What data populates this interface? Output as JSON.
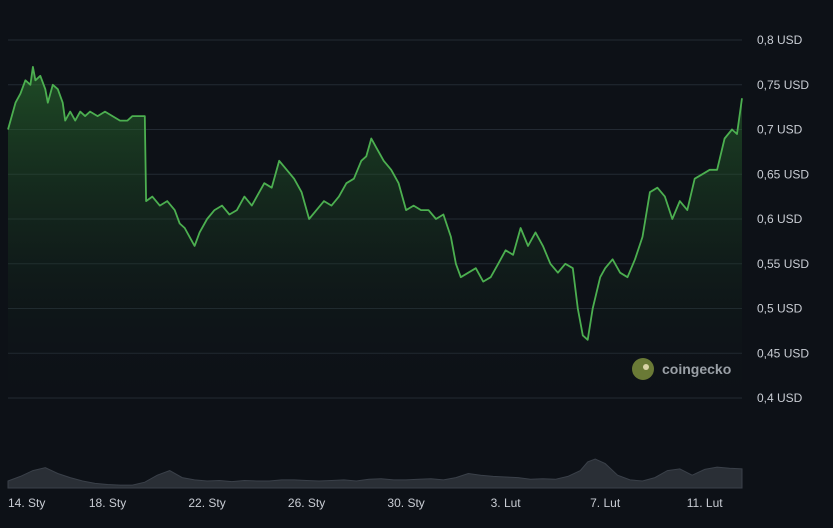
{
  "chart_data": {
    "type": "area",
    "y_ticks": [
      "0,8 USD",
      "0,75 USD",
      "0,7 USD",
      "0,65 USD",
      "0,6 USD",
      "0,55 USD",
      "0,5 USD",
      "0,45 USD",
      "0,4 USD"
    ],
    "y_tick_values": [
      0.8,
      0.75,
      0.7,
      0.65,
      0.6,
      0.55,
      0.5,
      0.45,
      0.4
    ],
    "x_ticks": [
      "14. Sty",
      "18. Sty",
      "22. Sty",
      "26. Sty",
      "30. Sty",
      "3. Lut",
      "7. Lut",
      "11. Lut"
    ],
    "x_tick_days": [
      0,
      4,
      8,
      12,
      16,
      20,
      24,
      28
    ],
    "ylim": [
      0.4,
      0.8
    ],
    "xlim_days": [
      0,
      29.5
    ],
    "grid": true,
    "line_color": "#4caf50",
    "series": [
      {
        "values": [
          [
            0,
            0.7
          ],
          [
            0.1,
            0.71
          ],
          [
            0.3,
            0.73
          ],
          [
            0.5,
            0.74
          ],
          [
            0.7,
            0.755
          ],
          [
            0.9,
            0.75
          ],
          [
            1.0,
            0.77
          ],
          [
            1.1,
            0.755
          ],
          [
            1.3,
            0.76
          ],
          [
            1.5,
            0.745
          ],
          [
            1.6,
            0.73
          ],
          [
            1.8,
            0.75
          ],
          [
            2.0,
            0.745
          ],
          [
            2.2,
            0.73
          ],
          [
            2.3,
            0.71
          ],
          [
            2.5,
            0.72
          ],
          [
            2.7,
            0.71
          ],
          [
            2.9,
            0.72
          ],
          [
            3.1,
            0.715
          ],
          [
            3.3,
            0.72
          ],
          [
            3.6,
            0.715
          ],
          [
            3.9,
            0.72
          ],
          [
            4.2,
            0.715
          ],
          [
            4.5,
            0.71
          ],
          [
            4.8,
            0.71
          ],
          [
            5.0,
            0.715
          ],
          [
            5.5,
            0.715
          ],
          [
            5.55,
            0.62
          ],
          [
            5.8,
            0.625
          ],
          [
            6.1,
            0.615
          ],
          [
            6.4,
            0.62
          ],
          [
            6.7,
            0.61
          ],
          [
            6.9,
            0.595
          ],
          [
            7.1,
            0.59
          ],
          [
            7.3,
            0.58
          ],
          [
            7.5,
            0.57
          ],
          [
            7.7,
            0.585
          ],
          [
            8.0,
            0.6
          ],
          [
            8.3,
            0.61
          ],
          [
            8.6,
            0.615
          ],
          [
            8.9,
            0.605
          ],
          [
            9.2,
            0.61
          ],
          [
            9.5,
            0.625
          ],
          [
            9.8,
            0.615
          ],
          [
            10.0,
            0.625
          ],
          [
            10.3,
            0.64
          ],
          [
            10.6,
            0.635
          ],
          [
            10.9,
            0.665
          ],
          [
            11.2,
            0.655
          ],
          [
            11.5,
            0.645
          ],
          [
            11.8,
            0.63
          ],
          [
            12.1,
            0.6
          ],
          [
            12.4,
            0.61
          ],
          [
            12.7,
            0.62
          ],
          [
            13.0,
            0.615
          ],
          [
            13.3,
            0.625
          ],
          [
            13.6,
            0.64
          ],
          [
            13.9,
            0.645
          ],
          [
            14.2,
            0.665
          ],
          [
            14.4,
            0.67
          ],
          [
            14.6,
            0.69
          ],
          [
            14.8,
            0.68
          ],
          [
            15.1,
            0.665
          ],
          [
            15.4,
            0.655
          ],
          [
            15.7,
            0.64
          ],
          [
            16.0,
            0.61
          ],
          [
            16.3,
            0.615
          ],
          [
            16.6,
            0.61
          ],
          [
            16.9,
            0.61
          ],
          [
            17.2,
            0.6
          ],
          [
            17.5,
            0.605
          ],
          [
            17.8,
            0.58
          ],
          [
            18.0,
            0.55
          ],
          [
            18.2,
            0.535
          ],
          [
            18.5,
            0.54
          ],
          [
            18.8,
            0.545
          ],
          [
            19.1,
            0.53
          ],
          [
            19.4,
            0.535
          ],
          [
            19.7,
            0.55
          ],
          [
            20.0,
            0.565
          ],
          [
            20.3,
            0.56
          ],
          [
            20.6,
            0.59
          ],
          [
            20.9,
            0.57
          ],
          [
            21.2,
            0.585
          ],
          [
            21.5,
            0.57
          ],
          [
            21.8,
            0.55
          ],
          [
            22.1,
            0.54
          ],
          [
            22.4,
            0.55
          ],
          [
            22.7,
            0.545
          ],
          [
            22.9,
            0.5
          ],
          [
            23.1,
            0.47
          ],
          [
            23.3,
            0.465
          ],
          [
            23.5,
            0.5
          ],
          [
            23.8,
            0.535
          ],
          [
            24.0,
            0.545
          ],
          [
            24.3,
            0.555
          ],
          [
            24.6,
            0.54
          ],
          [
            24.9,
            0.535
          ],
          [
            25.2,
            0.555
          ],
          [
            25.5,
            0.58
          ],
          [
            25.8,
            0.63
          ],
          [
            26.1,
            0.635
          ],
          [
            26.4,
            0.625
          ],
          [
            26.7,
            0.6
          ],
          [
            27.0,
            0.62
          ],
          [
            27.3,
            0.61
          ],
          [
            27.6,
            0.645
          ],
          [
            27.9,
            0.65
          ],
          [
            28.2,
            0.655
          ],
          [
            28.5,
            0.655
          ],
          [
            28.8,
            0.69
          ],
          [
            29.1,
            0.7
          ],
          [
            29.3,
            0.695
          ],
          [
            29.5,
            0.735
          ]
        ]
      }
    ],
    "volume_values": [
      [
        0,
        0.12
      ],
      [
        0.5,
        0.2
      ],
      [
        1.0,
        0.3
      ],
      [
        1.5,
        0.35
      ],
      [
        2.0,
        0.25
      ],
      [
        2.5,
        0.18
      ],
      [
        3.0,
        0.12
      ],
      [
        3.5,
        0.08
      ],
      [
        4.0,
        0.06
      ],
      [
        4.5,
        0.05
      ],
      [
        5.0,
        0.05
      ],
      [
        5.5,
        0.1
      ],
      [
        6.0,
        0.22
      ],
      [
        6.5,
        0.3
      ],
      [
        7.0,
        0.18
      ],
      [
        7.5,
        0.14
      ],
      [
        8.0,
        0.12
      ],
      [
        8.5,
        0.13
      ],
      [
        9.0,
        0.11
      ],
      [
        9.5,
        0.13
      ],
      [
        10.0,
        0.12
      ],
      [
        10.5,
        0.12
      ],
      [
        11.0,
        0.14
      ],
      [
        11.5,
        0.14
      ],
      [
        12.0,
        0.13
      ],
      [
        12.5,
        0.12
      ],
      [
        13.0,
        0.13
      ],
      [
        13.5,
        0.14
      ],
      [
        14.0,
        0.12
      ],
      [
        14.5,
        0.15
      ],
      [
        15.0,
        0.16
      ],
      [
        15.5,
        0.14
      ],
      [
        16.0,
        0.14
      ],
      [
        16.5,
        0.15
      ],
      [
        17.0,
        0.16
      ],
      [
        17.5,
        0.14
      ],
      [
        18.0,
        0.18
      ],
      [
        18.5,
        0.25
      ],
      [
        19.0,
        0.22
      ],
      [
        19.5,
        0.2
      ],
      [
        20.0,
        0.19
      ],
      [
        20.5,
        0.18
      ],
      [
        21.0,
        0.15
      ],
      [
        21.5,
        0.16
      ],
      [
        22.0,
        0.15
      ],
      [
        22.5,
        0.2
      ],
      [
        23.0,
        0.3
      ],
      [
        23.3,
        0.45
      ],
      [
        23.6,
        0.5
      ],
      [
        24.0,
        0.42
      ],
      [
        24.5,
        0.22
      ],
      [
        25.0,
        0.14
      ],
      [
        25.5,
        0.12
      ],
      [
        26.0,
        0.18
      ],
      [
        26.5,
        0.3
      ],
      [
        27.0,
        0.33
      ],
      [
        27.5,
        0.22
      ],
      [
        28.0,
        0.32
      ],
      [
        28.5,
        0.36
      ],
      [
        29.0,
        0.34
      ],
      [
        29.5,
        0.33
      ]
    ]
  },
  "watermark": {
    "text": "coingecko",
    "icon": "coingecko-logo-icon"
  }
}
